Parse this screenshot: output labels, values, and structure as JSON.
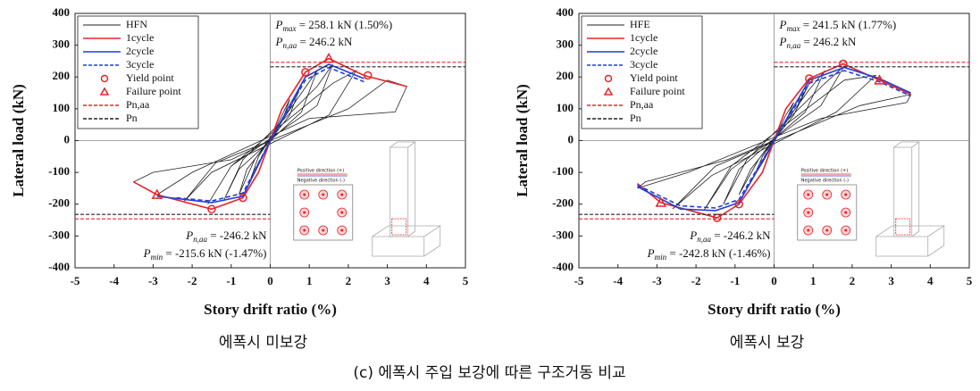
{
  "chart_data": [
    {
      "type": "line",
      "xlabel": "Story drift ratio (%)",
      "ylabel": "Lateral load (kN)",
      "xlim": [
        -5,
        5
      ],
      "ylim": [
        -400,
        400
      ],
      "xticks": [
        -5,
        -4,
        -3,
        -2,
        -1,
        0,
        1,
        2,
        3,
        4,
        5
      ],
      "yticks": [
        -400,
        -300,
        -200,
        -100,
        0,
        100,
        200,
        300,
        400
      ],
      "series": [
        {
          "name": "HFN",
          "color": "#222222",
          "style": "solid",
          "x": [
            0,
            0.3,
            0.5,
            0.3,
            -0.3,
            -0.5,
            -0.3,
            0.5,
            0.8,
            0.5,
            -0.6,
            -0.8,
            -0.4,
            0.8,
            1.2,
            0.8,
            -0.8,
            -1.2,
            -0.7,
            1.2,
            1.6,
            1.2,
            -1.0,
            -1.6,
            -1.0,
            1.6,
            2.2,
            1.5,
            -1.5,
            -2.2,
            -1.4,
            2.0,
            3.0,
            3.5,
            3.2,
            1.0,
            -2.0,
            -2.9,
            -3.5,
            -3.0,
            -1.0,
            0
          ],
          "values": [
            0,
            80,
            130,
            60,
            -70,
            -120,
            -50,
            100,
            180,
            80,
            -90,
            -170,
            -60,
            150,
            220,
            90,
            -90,
            -190,
            -60,
            170,
            240,
            110,
            -80,
            -200,
            -80,
            180,
            220,
            80,
            -100,
            -190,
            -70,
            100,
            190,
            170,
            90,
            70,
            -100,
            -170,
            -130,
            -100,
            -60,
            0
          ]
        },
        {
          "name": "1cycle",
          "color": "#e8232a",
          "style": "solid",
          "x": [
            -3.5,
            -2.9,
            -1.5,
            -0.7,
            -0.3,
            0,
            0.3,
            0.9,
            1.5,
            2.4,
            3.5
          ],
          "values": [
            -130,
            -170,
            -215.6,
            -180,
            -100,
            0,
            100,
            215,
            258.1,
            205,
            170
          ]
        },
        {
          "name": "2cycle",
          "color": "#1f3fd6",
          "style": "solid",
          "x": [
            -2.9,
            -1.5,
            -0.7,
            0,
            0.9,
            1.5,
            2.4
          ],
          "values": [
            -175,
            -195,
            -175,
            0,
            200,
            240,
            195
          ]
        },
        {
          "name": "3cycle",
          "color": "#1f3fd6",
          "style": "dash",
          "x": [
            -2.4,
            -1.5,
            -0.7,
            0,
            0.9,
            1.5,
            2.4
          ],
          "values": [
            -180,
            -190,
            -165,
            0,
            190,
            230,
            185
          ]
        },
        {
          "name": "Yield point",
          "color": "#e8232a",
          "style": "circle",
          "x": [
            0.9,
            2.5,
            -0.7,
            -1.5
          ],
          "values": [
            215,
            205,
            -180,
            -215.6
          ]
        },
        {
          "name": "Failure point",
          "color": "#e8232a",
          "style": "triangle",
          "x": [
            1.5,
            -2.9
          ],
          "values": [
            258.1,
            -170
          ]
        },
        {
          "name": "Pn,aa",
          "color": "#e8232a",
          "style": "hline",
          "values": [
            246.2,
            -246.2
          ]
        },
        {
          "name": "Pn",
          "color": "#222222",
          "style": "hline",
          "values": [
            232,
            -232
          ]
        }
      ],
      "annotations": [
        {
          "symbol": "P",
          "subscript": "max",
          "text": " = 258.1 kN (1.50%)"
        },
        {
          "symbol": "P",
          "subscript": "n,aa",
          "text": " = 246.2 kN"
        },
        {
          "symbol": "P",
          "subscript": "n,aa",
          "text": " = -246.2 kN"
        },
        {
          "symbol": "P",
          "subscript": "min",
          "text": " = -215.6 kN (-1.47%)"
        }
      ],
      "inset": {
        "positive": "Positive direction (+)",
        "negative": "Negative direction (-)"
      },
      "caption": "에폭시 미보강"
    },
    {
      "type": "line",
      "xlabel": "Story drift ratio (%)",
      "ylabel": "Lateral load (kN)",
      "xlim": [
        -5,
        5
      ],
      "ylim": [
        -400,
        400
      ],
      "xticks": [
        -5,
        -4,
        -3,
        -2,
        -1,
        0,
        1,
        2,
        3,
        4,
        5
      ],
      "yticks": [
        -400,
        -300,
        -200,
        -100,
        0,
        100,
        200,
        300,
        400
      ],
      "series": [
        {
          "name": "HFE",
          "color": "#222222",
          "style": "solid",
          "x": [
            0,
            0.3,
            0.5,
            0.3,
            -0.3,
            -0.5,
            -0.3,
            0.6,
            0.9,
            0.5,
            -0.6,
            -0.9,
            -0.4,
            0.9,
            1.3,
            0.8,
            -0.9,
            -1.3,
            -0.7,
            1.3,
            1.8,
            1.2,
            -1.1,
            -1.8,
            -1.1,
            1.8,
            2.6,
            1.6,
            -1.6,
            -2.6,
            -1.5,
            2.2,
            3.5,
            3.4,
            1.2,
            -2.2,
            -3.5,
            -3.3,
            -1.2,
            0
          ],
          "values": [
            0,
            80,
            120,
            60,
            -70,
            -110,
            -50,
            110,
            180,
            80,
            -90,
            -170,
            -60,
            160,
            220,
            90,
            -90,
            -200,
            -60,
            180,
            235,
            110,
            -90,
            -220,
            -80,
            190,
            205,
            90,
            -110,
            -215,
            -80,
            110,
            145,
            120,
            70,
            -100,
            -150,
            -130,
            -60,
            0
          ]
        },
        {
          "name": "1cycle",
          "color": "#e8232a",
          "style": "solid",
          "x": [
            -3.5,
            -2.9,
            -1.46,
            -0.9,
            -0.3,
            0,
            0.3,
            0.9,
            1.77,
            2.7,
            3.5
          ],
          "values": [
            -135,
            -195,
            -242.8,
            -200,
            -100,
            0,
            100,
            195,
            241.5,
            190,
            145
          ]
        },
        {
          "name": "2cycle",
          "color": "#1f3fd6",
          "style": "solid",
          "x": [
            -3.5,
            -2.4,
            -1.5,
            -0.9,
            0,
            0.9,
            1.8,
            2.7,
            3.5
          ],
          "values": [
            -145,
            -215,
            -220,
            -195,
            0,
            190,
            230,
            195,
            150
          ]
        },
        {
          "name": "3cycle",
          "color": "#1f3fd6",
          "style": "dash",
          "x": [
            -3.5,
            -2.4,
            -1.5,
            -0.9,
            0,
            0.9,
            1.8,
            2.7,
            3.5
          ],
          "values": [
            -140,
            -205,
            -212,
            -185,
            0,
            180,
            220,
            185,
            140
          ]
        },
        {
          "name": "Yield point",
          "color": "#e8232a",
          "style": "circle",
          "x": [
            0.9,
            1.77,
            -0.9,
            -1.46
          ],
          "values": [
            195,
            241.5,
            -200,
            -242.8
          ]
        },
        {
          "name": "Failure point",
          "color": "#e8232a",
          "style": "triangle",
          "x": [
            2.7,
            -2.9
          ],
          "values": [
            190,
            -195
          ]
        },
        {
          "name": "Pn,aa",
          "color": "#e8232a",
          "style": "hline",
          "values": [
            246.2,
            -246.2
          ]
        },
        {
          "name": "Pn",
          "color": "#222222",
          "style": "hline",
          "values": [
            232,
            -232
          ]
        }
      ],
      "annotations": [
        {
          "symbol": "P",
          "subscript": "max",
          "text": " = 241.5 kN (1.77%)"
        },
        {
          "symbol": "P",
          "subscript": "n,aa",
          "text": " = 246.2 kN"
        },
        {
          "symbol": "P",
          "subscript": "n,aa",
          "text": " = -246.2 kN"
        },
        {
          "symbol": "P",
          "subscript": "min",
          "text": " = -242.8 kN (-1.46%)"
        }
      ],
      "inset": {
        "positive": "Positive direction (+)",
        "negative": "Negative direction (-)"
      },
      "caption": "에폭시 보강"
    }
  ],
  "figure_caption": "(c)  에폭시 주입 보강에 따른 구조거동 비교"
}
